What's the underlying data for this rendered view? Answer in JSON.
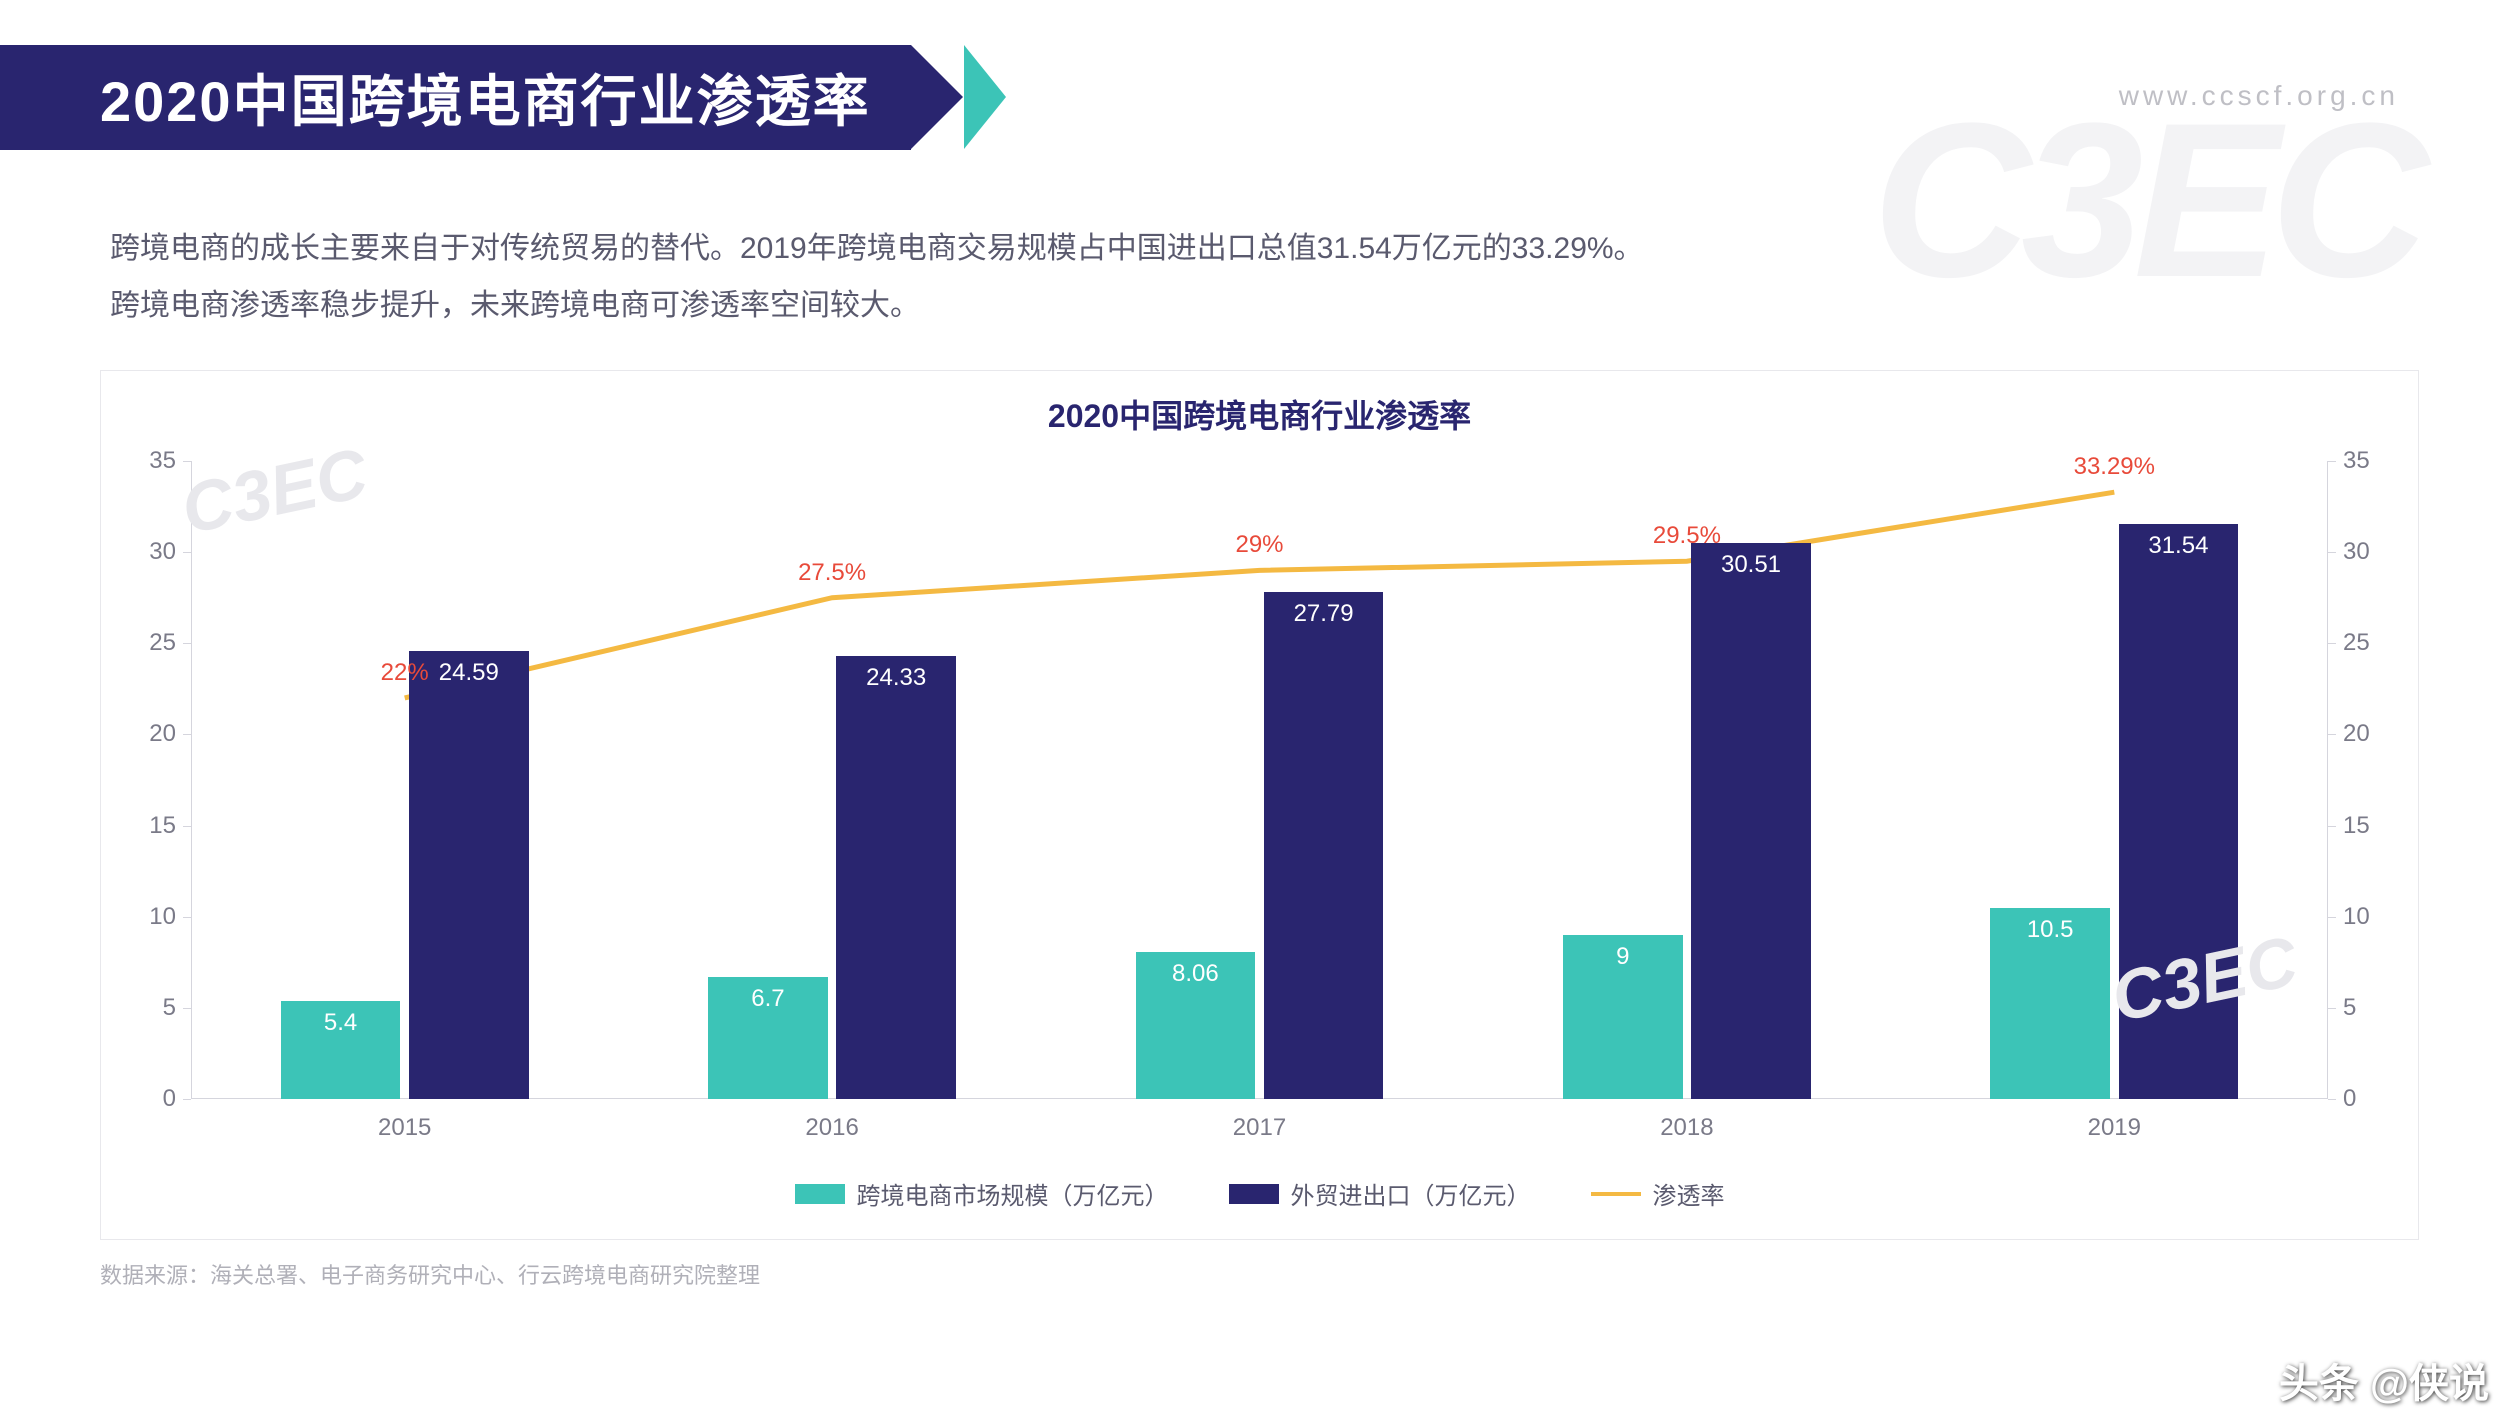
{
  "header": {
    "title": "2020中国跨境电商行业渗透率",
    "url": "www.ccscf.org.cn",
    "bg_color": "#29256f",
    "accent_color": "#3cc4b7",
    "title_color": "#ffffff",
    "title_fontsize": 56
  },
  "description": {
    "line1": "跨境电商的成长主要来自于对传统贸易的替代。2019年跨境电商交易规模占中国进出口总值31.54万亿元的33.29%。",
    "line2": "跨境电商渗透率稳步提升，未来跨境电商可渗透率空间较大。",
    "color": "#5a5a6e",
    "fontsize": 30
  },
  "chart": {
    "title": "2020中国跨境电商行业渗透率",
    "title_color": "#29256f",
    "title_fontsize": 32,
    "background_color": "#ffffff",
    "border_color": "#e8e8ec",
    "categories": [
      "2015",
      "2016",
      "2017",
      "2018",
      "2019"
    ],
    "series1": {
      "name": "跨境电商市场规模（万亿元）",
      "color": "#3cc4b7",
      "values": [
        5.4,
        6.7,
        8.06,
        9,
        10.5
      ],
      "labels": [
        "5.4",
        "6.7",
        "8.06",
        "9",
        "10.5"
      ]
    },
    "series2": {
      "name": "外贸进出口（万亿元）",
      "color": "#29256f",
      "values": [
        24.59,
        24.33,
        27.79,
        30.51,
        31.54
      ],
      "labels": [
        "24.59",
        "24.33",
        "27.79",
        "30.51",
        "31.54"
      ]
    },
    "series3": {
      "name": "渗透率",
      "color": "#f4b942",
      "label_color": "#e84a3a",
      "values": [
        22,
        27.5,
        29,
        29.5,
        33.29
      ],
      "labels": [
        "22%",
        "27.5%",
        "29%",
        "29.5%",
        "33.29%"
      ]
    },
    "y_left": {
      "min": 0,
      "max": 35,
      "step": 5
    },
    "y_right": {
      "min": 0,
      "max": 35,
      "step": 5
    },
    "axis_label_color": "#7a7a88",
    "axis_label_fontsize": 24,
    "axis_line_color": "#d5d5dd",
    "bar_width_ratio": 0.28,
    "bar_gap_ratio": 0.02,
    "line_width": 5
  },
  "source": {
    "text": "数据来源：海关总署、电子商务研究中心、行云跨境电商研究院整理",
    "color": "#b0b0b8",
    "fontsize": 22
  },
  "footer": {
    "text": "头条 @侠说"
  },
  "watermark": {
    "big": "C3EC",
    "small": "C3EC"
  }
}
